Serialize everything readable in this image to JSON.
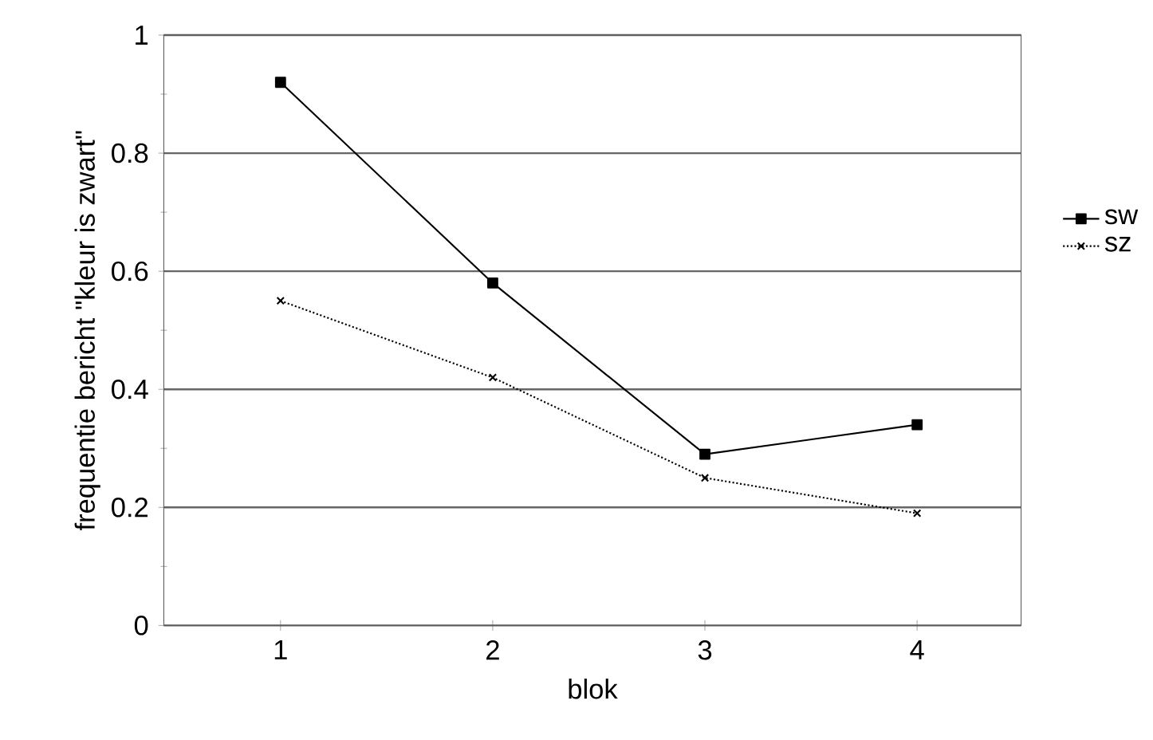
{
  "chart_data": {
    "type": "line",
    "xlabel": "blok",
    "ylabel": "frequentie bericht \"kleur is zwart\"",
    "categories": [
      "1",
      "2",
      "3",
      "4"
    ],
    "series": [
      {
        "name": "sw",
        "color": "#000000",
        "marker": "square",
        "line_style": "solid",
        "values": [
          0.92,
          0.58,
          0.29,
          0.34
        ]
      },
      {
        "name": "sz",
        "color": "#000000",
        "marker": "cross",
        "line_style": "dotted",
        "values": [
          0.55,
          0.42,
          0.25,
          0.19
        ]
      }
    ],
    "ylim": [
      0,
      1
    ],
    "yticks": [
      0,
      {
        "value": 0.1,
        "label": null
      },
      0.2,
      {
        "value": 0.3,
        "label": null
      },
      0.4,
      {
        "value": 0.5,
        "label": null
      },
      0.6,
      {
        "value": 0.7,
        "label": null
      },
      0.8,
      {
        "value": 0.9,
        "label": null
      },
      1
    ],
    "grid": "y",
    "legend": "right"
  }
}
